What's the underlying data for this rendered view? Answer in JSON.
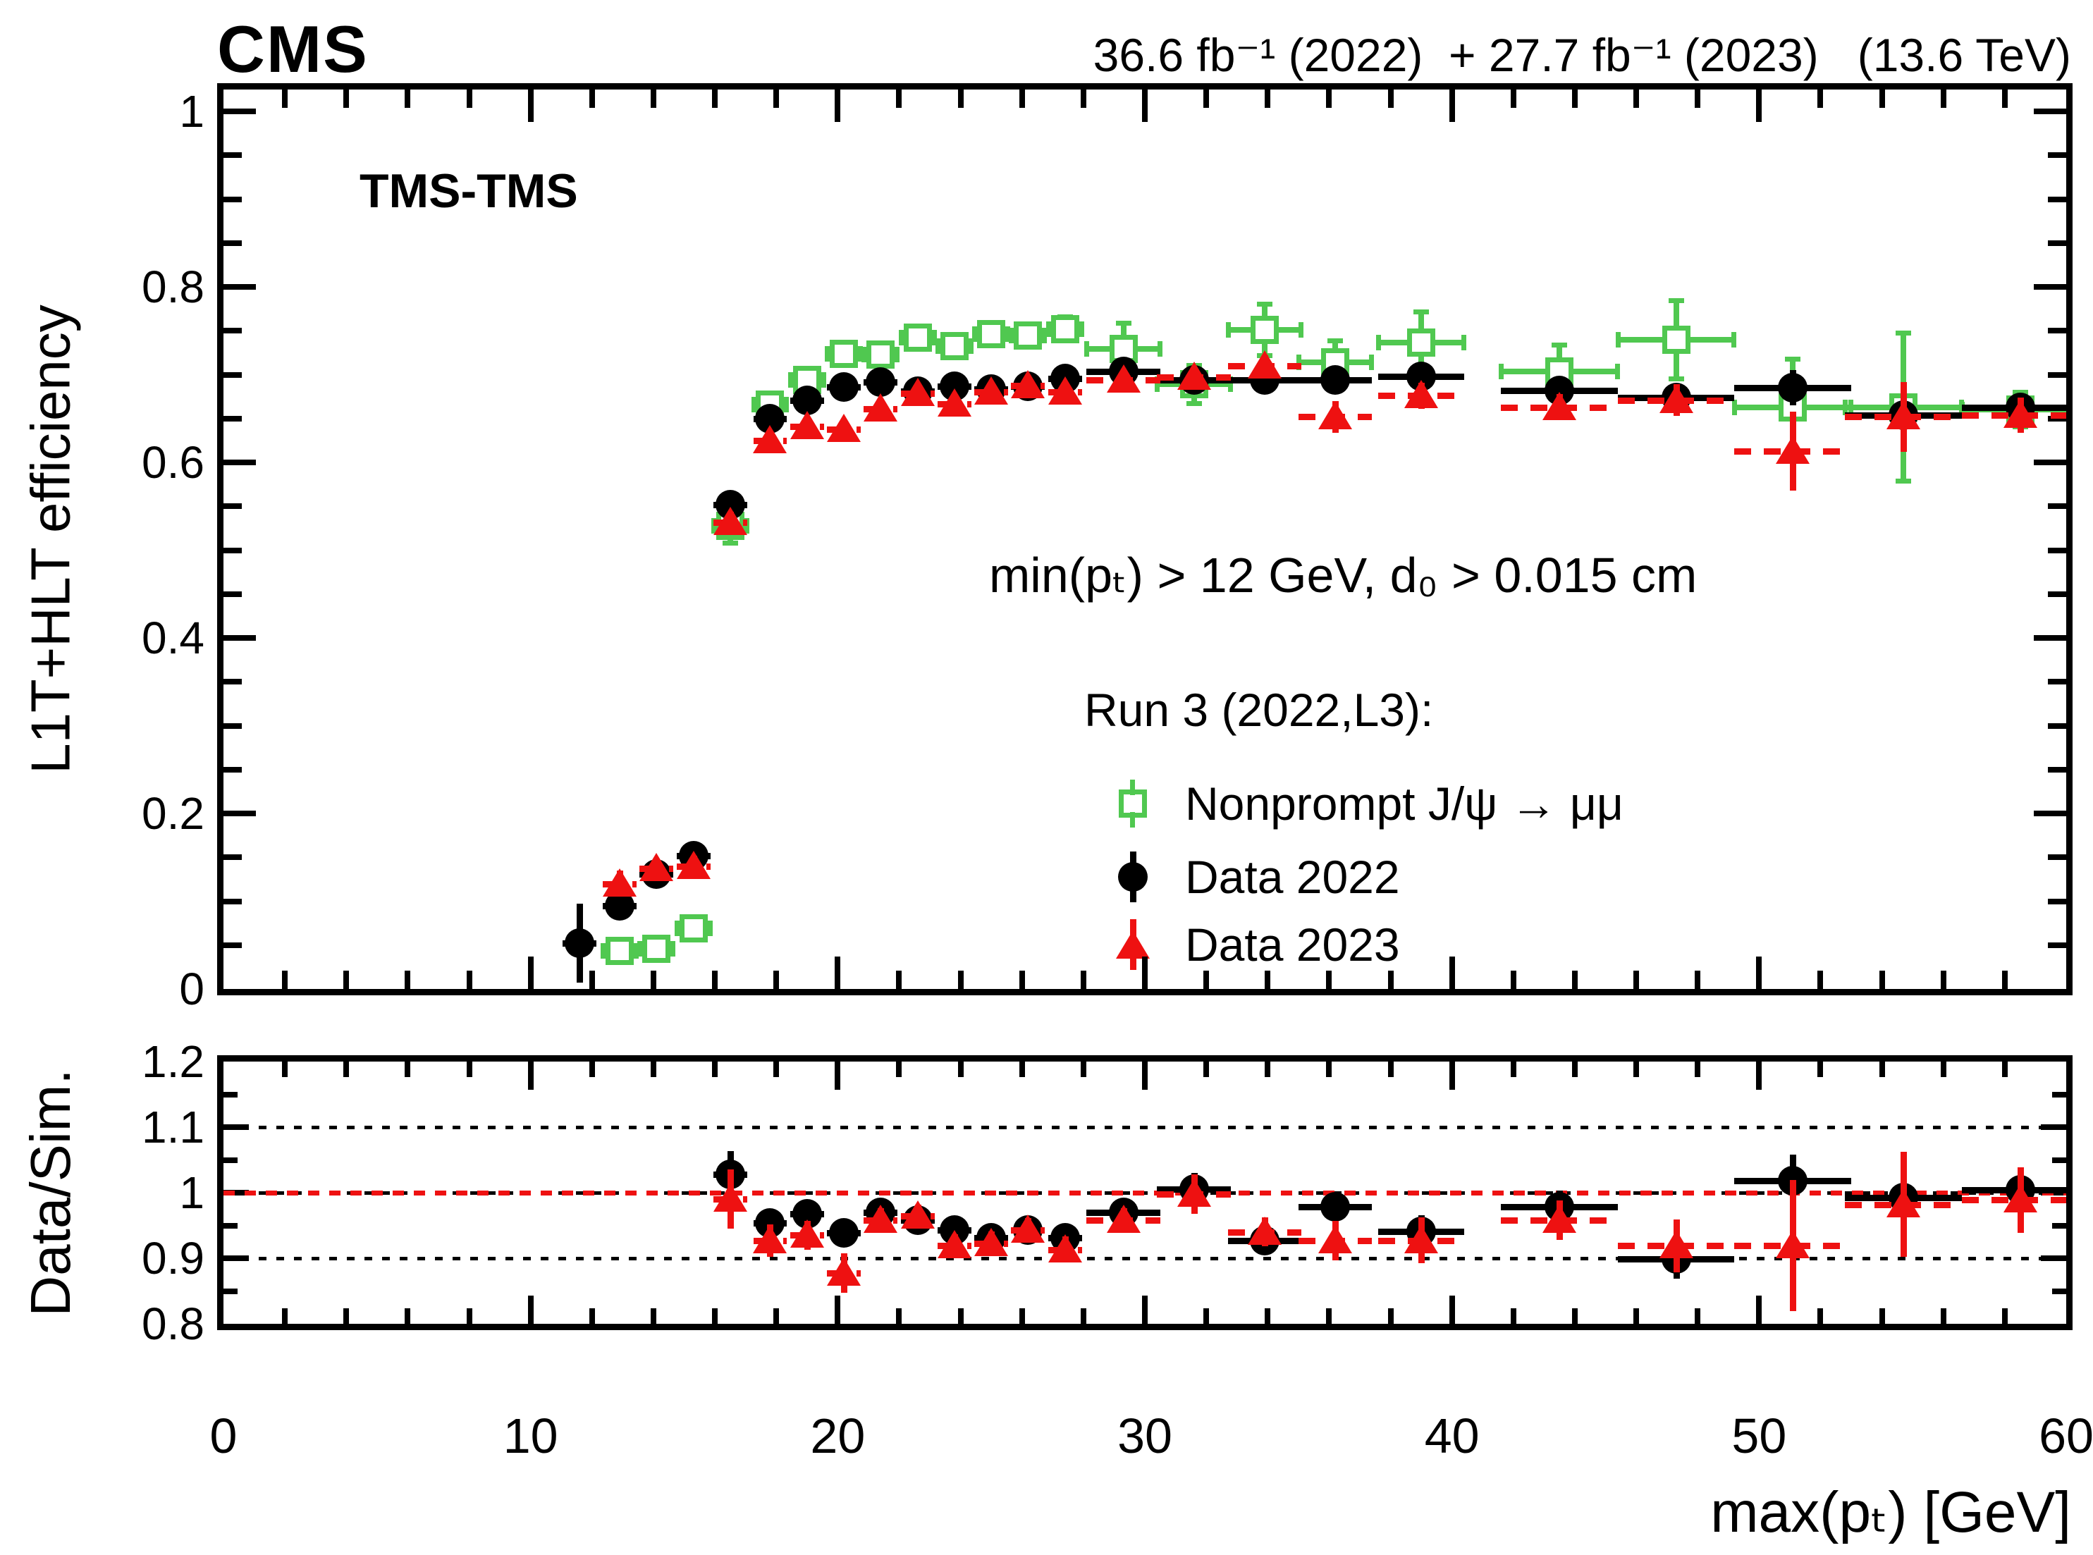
{
  "header": {
    "experiment": "CMS",
    "luminosity": "36.6 fb⁻¹ (2022)  + 27.7 fb⁻¹ (2023)   (13.6 TeV)"
  },
  "panel_label": "TMS-TMS",
  "annotations": {
    "selection": "min(pₜ) > 12 GeV, d₀ > 0.015 cm",
    "legend_title": "Run 3 (2022,L3):"
  },
  "legend": [
    {
      "series": "sim",
      "label": "Nonprompt J/ψ → μμ"
    },
    {
      "series": "data2022",
      "label": "Data 2022"
    },
    {
      "series": "data2023",
      "label": "Data 2023"
    }
  ],
  "colors": {
    "sim": "#50c850",
    "data2022": "#000000",
    "data2023": "#ee1111",
    "frame": "#000000"
  },
  "axes": {
    "x": {
      "title": "max(pₜ) [GeV]",
      "range": [
        0,
        60
      ],
      "major_ticks": [
        0,
        10,
        20,
        30,
        40,
        50,
        60
      ],
      "tick_labels": [
        "0",
        "10",
        "20",
        "30",
        "40",
        "50",
        "60"
      ],
      "minor_step": 2
    },
    "eff": {
      "title": "L1T+HLT efficiency",
      "range": [
        0,
        1.025
      ],
      "major_ticks": [
        0,
        0.2,
        0.4,
        0.6,
        0.8,
        1
      ],
      "tick_labels": [
        "0",
        "0.2",
        "0.4",
        "0.6",
        "0.8",
        "1"
      ],
      "minor_step": 0.05
    },
    "ratio": {
      "title": "Data/Sim.",
      "range": [
        0.8,
        1.2
      ],
      "major_ticks": [
        0.8,
        0.9,
        1,
        1.1,
        1.2
      ],
      "tick_labels": [
        "0.8",
        "0.9",
        "1",
        "1.1",
        "1.2"
      ],
      "minor_step": 0.05,
      "guides_dotted": [
        0.9,
        1.0,
        1.1
      ],
      "guide_red_dashed": 1.0
    }
  },
  "chart_data": {
    "type": "scatter",
    "description": "CMS L1T+HLT dimuon trigger efficiency vs max(pT) with Data/Sim ratio panel",
    "x": [
      11.6,
      12.9,
      14.1,
      15.3,
      16.5,
      17.8,
      19.0,
      20.2,
      21.4,
      22.6,
      23.8,
      25.0,
      26.2,
      27.4,
      29.3,
      31.6,
      33.9,
      36.2,
      39.0,
      43.5,
      47.3,
      51.1,
      54.7,
      58.5
    ],
    "xerr": [
      0.55,
      0.55,
      0.55,
      0.55,
      0.55,
      0.55,
      0.55,
      0.55,
      0.55,
      0.55,
      0.55,
      0.55,
      0.55,
      0.55,
      1.2,
      1.2,
      1.2,
      1.2,
      1.4,
      1.9,
      1.9,
      1.9,
      1.9,
      1.9
    ],
    "series": [
      {
        "key": "sim",
        "name": "Nonprompt J/ψ → μμ",
        "marker": "open_square",
        "color": "#50c850",
        "efficiency": [
          null,
          0.043,
          0.046,
          0.069,
          0.528,
          0.666,
          0.694,
          0.724,
          0.723,
          0.742,
          0.733,
          0.746,
          0.745,
          0.752,
          0.729,
          0.689,
          0.751,
          0.714,
          0.737,
          0.704,
          0.74,
          0.663,
          0.663,
          0.66
        ],
        "eff_err": [
          null,
          0.008,
          0.008,
          0.01,
          0.02,
          0.012,
          0.012,
          0.012,
          0.012,
          0.012,
          0.012,
          0.012,
          0.012,
          0.014,
          0.03,
          0.022,
          0.03,
          0.025,
          0.035,
          0.03,
          0.045,
          0.055,
          0.085,
          0.02
        ]
      },
      {
        "key": "d22",
        "name": "Data 2022",
        "marker": "filled_circle",
        "color": "#000000",
        "efficiency": [
          0.052,
          0.095,
          0.131,
          0.152,
          0.552,
          0.65,
          0.671,
          0.686,
          0.692,
          0.681,
          0.687,
          0.684,
          0.687,
          0.696,
          0.704,
          0.694,
          0.694,
          0.694,
          0.698,
          0.682,
          0.674,
          0.685,
          0.654,
          0.663
        ],
        "eff_err": [
          0.045,
          0.012,
          0.01,
          0.01,
          0.012,
          0.008,
          0.008,
          0.008,
          0.008,
          0.008,
          0.008,
          0.008,
          0.008,
          0.008,
          0.008,
          0.008,
          0.008,
          0.008,
          0.008,
          0.01,
          0.012,
          0.02,
          0.015,
          0.015
        ],
        "ratio": [
          null,
          null,
          null,
          null,
          1.028,
          0.954,
          0.968,
          0.939,
          0.97,
          0.958,
          0.943,
          0.931,
          0.943,
          0.931,
          0.97,
          1.005,
          0.927,
          0.978,
          0.941,
          0.978,
          0.899,
          1.018,
          0.993,
          1.004
        ],
        "ratio_err": [
          null,
          null,
          null,
          null,
          0.035,
          0.02,
          0.018,
          0.018,
          0.015,
          0.015,
          0.015,
          0.015,
          0.015,
          0.015,
          0.015,
          0.025,
          0.02,
          0.022,
          0.025,
          0.025,
          0.03,
          0.04,
          0.035,
          0.035
        ]
      },
      {
        "key": "d23",
        "name": "Data 2023",
        "marker": "filled_triangle",
        "color": "#ee1111",
        "efficiency": [
          null,
          0.12,
          0.137,
          0.14,
          0.532,
          0.625,
          0.641,
          0.638,
          0.661,
          0.679,
          0.667,
          0.68,
          0.688,
          0.68,
          0.694,
          0.697,
          0.71,
          0.652,
          0.676,
          0.663,
          0.671,
          0.613,
          0.652,
          0.654
        ],
        "eff_err": [
          null,
          0.015,
          0.012,
          0.012,
          0.012,
          0.01,
          0.01,
          0.01,
          0.01,
          0.01,
          0.01,
          0.01,
          0.01,
          0.01,
          0.01,
          0.01,
          0.012,
          0.018,
          0.015,
          0.015,
          0.018,
          0.045,
          0.04,
          0.02
        ],
        "ratio": [
          null,
          null,
          null,
          null,
          0.99,
          0.927,
          0.935,
          0.877,
          0.958,
          0.964,
          0.919,
          0.923,
          0.943,
          0.913,
          0.958,
          0.998,
          0.94,
          0.927,
          0.927,
          0.958,
          0.919,
          0.919,
          0.982,
          0.989
        ],
        "ratio_err": [
          null,
          null,
          null,
          null,
          0.045,
          0.025,
          0.022,
          0.03,
          0.018,
          0.018,
          0.018,
          0.018,
          0.018,
          0.02,
          0.018,
          0.03,
          0.022,
          0.03,
          0.035,
          0.03,
          0.04,
          0.1,
          0.08,
          0.05
        ]
      }
    ],
    "x_range": [
      0,
      60
    ],
    "eff_range": [
      0,
      1.025
    ],
    "ratio_range": [
      0.8,
      1.2
    ],
    "grid": false,
    "legend_position": "center-right of efficiency panel"
  }
}
